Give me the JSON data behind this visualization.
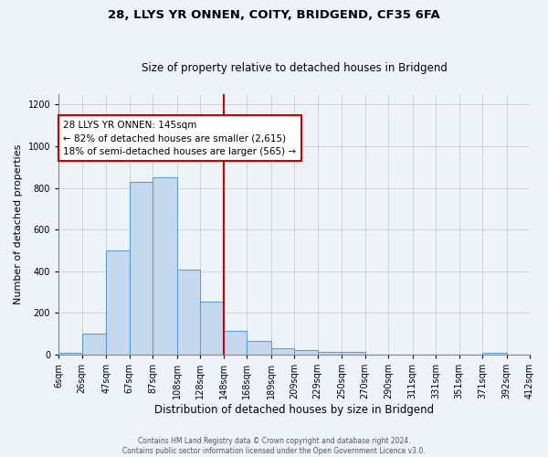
{
  "title1": "28, LLYS YR ONNEN, COITY, BRIDGEND, CF35 6FA",
  "title2": "Size of property relative to detached houses in Bridgend",
  "xlabel": "Distribution of detached houses by size in Bridgend",
  "ylabel": "Number of detached properties",
  "bin_labels": [
    "6sqm",
    "26sqm",
    "47sqm",
    "67sqm",
    "87sqm",
    "108sqm",
    "128sqm",
    "148sqm",
    "168sqm",
    "189sqm",
    "209sqm",
    "229sqm",
    "250sqm",
    "270sqm",
    "290sqm",
    "311sqm",
    "331sqm",
    "351sqm",
    "371sqm",
    "392sqm",
    "412sqm"
  ],
  "bar_values": [
    10,
    100,
    500,
    830,
    850,
    410,
    255,
    115,
    65,
    32,
    20,
    13,
    13,
    0,
    0,
    0,
    0,
    0,
    10,
    0
  ],
  "bar_color": "#c5d8ed",
  "bar_edge_color": "#5a9fd4",
  "property_sqm": 145,
  "property_line_label": "28 LLYS YR ONNEN: 145sqm",
  "annotation_smaller": "← 82% of detached houses are smaller (2,615)",
  "annotation_larger": "18% of semi-detached houses are larger (565) →",
  "annotation_box_facecolor": "#ffffff",
  "annotation_box_edgecolor": "#cc0000",
  "vline_color": "#cc0000",
  "background_color": "#eef2f9",
  "footer1": "Contains HM Land Registry data © Crown copyright and database right 2024.",
  "footer2": "Contains public sector information licensed under the Open Government Licence v3.0.",
  "ylim": [
    0,
    1250
  ],
  "yticks": [
    0,
    200,
    400,
    600,
    800,
    1000,
    1200
  ]
}
